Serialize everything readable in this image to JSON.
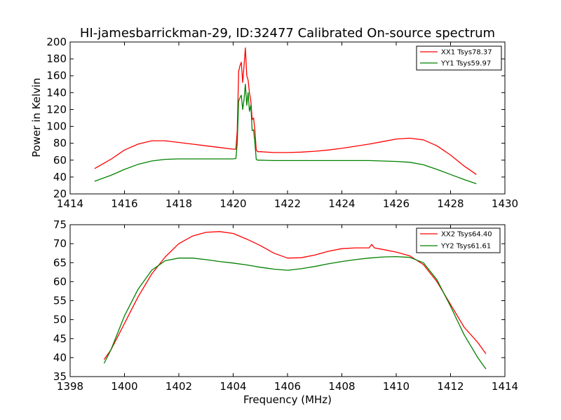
{
  "chart_data": [
    {
      "type": "line",
      "title": "HI-jamesbarrickman-29, ID:32477 Calibrated On-source spectrum",
      "xlabel": "",
      "ylabel": "Power in Kelvin",
      "xlim": [
        1414,
        1430
      ],
      "ylim": [
        20,
        200
      ],
      "xticks": [
        "1414",
        "1416",
        "1418",
        "1420",
        "1422",
        "1424",
        "1426",
        "1428",
        "1430"
      ],
      "yticks": [
        "20",
        "40",
        "60",
        "80",
        "100",
        "120",
        "140",
        "160",
        "180",
        "200"
      ],
      "legend_position": "top-right",
      "grid": false,
      "series": [
        {
          "name": "XX1 Tsys78.37",
          "color": "#ff0000",
          "x": [
            1414.9,
            1415.5,
            1416.0,
            1416.5,
            1417.0,
            1417.5,
            1418.0,
            1418.5,
            1419.0,
            1419.5,
            1420.0,
            1420.1,
            1420.15,
            1420.2,
            1420.25,
            1420.3,
            1420.35,
            1420.4,
            1420.45,
            1420.5,
            1420.55,
            1420.6,
            1420.65,
            1420.7,
            1420.75,
            1420.8,
            1420.85,
            1420.9,
            1420.95,
            1421.0,
            1421.5,
            1422.0,
            1422.5,
            1423.0,
            1423.5,
            1424.0,
            1424.5,
            1425.0,
            1425.5,
            1426.0,
            1426.5,
            1427.0,
            1427.5,
            1428.0,
            1428.5,
            1428.95
          ],
          "y": [
            50,
            61,
            72,
            79,
            83,
            83,
            81,
            79,
            77,
            75,
            73,
            73,
            95,
            165,
            172,
            176,
            152,
            172,
            193,
            160,
            155,
            140,
            130,
            108,
            110,
            95,
            72,
            70,
            70,
            70,
            69,
            69,
            69.5,
            70.5,
            72,
            74,
            76.5,
            79,
            82,
            85,
            86,
            84,
            77,
            66,
            53,
            43
          ]
        },
        {
          "name": "YY1 Tsys59.97",
          "color": "#008000",
          "x": [
            1414.9,
            1415.5,
            1416.0,
            1416.5,
            1417.0,
            1417.5,
            1418.0,
            1418.5,
            1419.0,
            1419.5,
            1420.0,
            1420.1,
            1420.15,
            1420.2,
            1420.25,
            1420.3,
            1420.35,
            1420.4,
            1420.45,
            1420.5,
            1420.55,
            1420.6,
            1420.65,
            1420.7,
            1420.75,
            1420.8,
            1420.85,
            1420.9,
            1420.95,
            1421.0,
            1421.5,
            1422.0,
            1422.5,
            1423.0,
            1423.5,
            1424.0,
            1424.5,
            1425.0,
            1425.5,
            1426.0,
            1426.5,
            1427.0,
            1427.5,
            1428.0,
            1428.5,
            1428.95
          ],
          "y": [
            35,
            42,
            49,
            55,
            59,
            61,
            61.5,
            61.5,
            61.5,
            61.5,
            61.5,
            62,
            80,
            130,
            134,
            137,
            120,
            132,
            150,
            125,
            140,
            118,
            125,
            95,
            96,
            80,
            61,
            60,
            60,
            60,
            59.5,
            59.5,
            59.5,
            59.5,
            59.5,
            59.5,
            59.5,
            59.5,
            59,
            58.5,
            57.5,
            54.5,
            49,
            43,
            37,
            32
          ]
        }
      ]
    },
    {
      "type": "line",
      "title": "",
      "xlabel": "Frequency (MHz)",
      "ylabel": "",
      "xlim": [
        1398,
        1414
      ],
      "ylim": [
        35,
        75
      ],
      "xticks": [
        "1398",
        "1400",
        "1402",
        "1404",
        "1406",
        "1408",
        "1410",
        "1412",
        "1414"
      ],
      "yticks": [
        "35",
        "40",
        "45",
        "50",
        "55",
        "60",
        "65",
        "70",
        "75"
      ],
      "legend_position": "top-right",
      "grid": false,
      "series": [
        {
          "name": "XX2 Tsys64.40",
          "color": "#ff0000",
          "x": [
            1399.25,
            1399.5,
            1400.0,
            1400.5,
            1401.0,
            1401.5,
            1402.0,
            1402.5,
            1403.0,
            1403.5,
            1404.0,
            1404.5,
            1405.0,
            1405.5,
            1406.0,
            1406.5,
            1407.0,
            1407.5,
            1408.0,
            1408.5,
            1409.0,
            1409.1,
            1409.2,
            1409.5,
            1410.0,
            1410.5,
            1411.0,
            1411.5,
            1412.0,
            1412.5,
            1413.0,
            1413.3
          ],
          "y": [
            39.5,
            42,
            49,
            56,
            62,
            66.5,
            70,
            72,
            73,
            73.2,
            72.7,
            71.2,
            69.5,
            67.5,
            66.2,
            66.3,
            67,
            68,
            68.7,
            68.9,
            68.9,
            69.8,
            68.9,
            68.5,
            67.8,
            66.8,
            64.5,
            60,
            54,
            48,
            44,
            41
          ]
        },
        {
          "name": "YY2 Tsys61.61",
          "color": "#008000",
          "x": [
            1399.25,
            1399.5,
            1400.0,
            1400.5,
            1401.0,
            1401.5,
            1402.0,
            1402.5,
            1403.0,
            1403.5,
            1404.0,
            1404.5,
            1405.0,
            1405.5,
            1406.0,
            1406.5,
            1407.0,
            1407.5,
            1408.0,
            1408.5,
            1409.0,
            1409.5,
            1410.0,
            1410.5,
            1411.0,
            1411.5,
            1412.0,
            1412.5,
            1413.0,
            1413.3
          ],
          "y": [
            38.5,
            42,
            51,
            58,
            63,
            65.5,
            66.2,
            66.2,
            65.8,
            65.3,
            64.9,
            64.4,
            63.8,
            63.3,
            63,
            63.4,
            64,
            64.7,
            65.3,
            65.8,
            66.2,
            66.5,
            66.6,
            66.4,
            65,
            60.5,
            53.5,
            46,
            40,
            37
          ]
        }
      ]
    }
  ]
}
